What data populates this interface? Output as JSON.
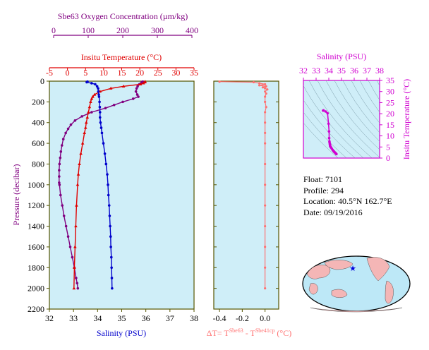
{
  "colors": {
    "oxygen": "#800080",
    "temperature": "#e00000",
    "salinity": "#0000cc",
    "delta_t": "#ff7070",
    "salinity_ts": "#d000d0",
    "panel_bg": "#cfeef8",
    "frame": "#555500"
  },
  "info": {
    "float": "Float:  7101",
    "profile": "Profile:  294",
    "location": "Location:  40.5°N  162.7°E",
    "date": "Date:  09/19/2016"
  },
  "chart_data": [
    {
      "type": "line",
      "panel": "profile",
      "ylabel": "Pressure (decibar)",
      "ylim": [
        2200,
        0
      ],
      "yticks": [
        0,
        200,
        400,
        600,
        800,
        1000,
        1200,
        1400,
        1600,
        1800,
        2000,
        2200
      ],
      "axes": {
        "oxygen": {
          "label": "Sbe63 Oxygen Concentration (µm/kg)",
          "lim": [
            0,
            400
          ],
          "ticks": [
            0,
            100,
            200,
            300,
            400
          ]
        },
        "temperature": {
          "label": "Insitu Temperature (°C)",
          "lim": [
            -5,
            35
          ],
          "ticks": [
            -5,
            0,
            5,
            10,
            15,
            20,
            25,
            30,
            35
          ]
        },
        "salinity": {
          "label": "Salinity (PSU)",
          "lim": [
            32,
            38
          ],
          "ticks": [
            32,
            33,
            34,
            35,
            36,
            37,
            38
          ]
        }
      },
      "series": [
        {
          "key": "oxygen",
          "pressure": [
            5,
            10,
            20,
            30,
            50,
            70,
            100,
            130,
            150,
            170,
            200,
            230,
            260,
            300,
            340,
            380,
            420,
            460,
            500,
            560,
            620,
            680,
            740,
            800,
            860,
            920,
            980,
            1000,
            1100,
            1200,
            1300,
            1400,
            1500,
            1600,
            1700,
            1800,
            1900,
            1950,
            2000
          ],
          "values": [
            258,
            255,
            253,
            248,
            243,
            240,
            238,
            242,
            245,
            230,
            200,
            175,
            150,
            110,
            82,
            62,
            50,
            42,
            35,
            28,
            24,
            21,
            19,
            17,
            16,
            16,
            16,
            17,
            20,
            25,
            30,
            36,
            42,
            48,
            54,
            60,
            65,
            68,
            70
          ]
        },
        {
          "key": "temperature",
          "pressure": [
            5,
            10,
            20,
            30,
            50,
            70,
            100,
            130,
            150,
            170,
            200,
            250,
            300,
            350,
            400,
            450,
            500,
            600,
            700,
            800,
            900,
            1000,
            1200,
            1400,
            1600,
            1800,
            2000
          ],
          "values": [
            21.5,
            21.4,
            21.0,
            20.2,
            15.5,
            12.0,
            9.0,
            7.5,
            7.0,
            6.7,
            6.4,
            6.1,
            5.8,
            5.5,
            5.2,
            5.0,
            4.7,
            4.2,
            3.7,
            3.3,
            3.0,
            2.8,
            2.5,
            2.3,
            2.1,
            1.9,
            1.8
          ]
        },
        {
          "key": "salinity",
          "pressure": [
            5,
            10,
            20,
            30,
            50,
            70,
            100,
            130,
            150,
            200,
            250,
            300,
            350,
            400,
            450,
            500,
            600,
            700,
            800,
            900,
            1000,
            1100,
            1200,
            1300,
            1400,
            1500,
            1600,
            1700,
            1800,
            1900,
            2000
          ],
          "values": [
            33.58,
            33.55,
            33.75,
            33.9,
            33.98,
            34.02,
            34.03,
            34.05,
            34.06,
            34.08,
            34.09,
            34.1,
            34.1,
            34.12,
            34.15,
            34.18,
            34.24,
            34.3,
            34.35,
            34.4,
            34.43,
            34.45,
            34.48,
            34.5,
            34.52,
            34.54,
            34.55,
            34.57,
            34.58,
            34.59,
            34.6
          ]
        }
      ]
    },
    {
      "type": "line",
      "panel": "delta_t",
      "xlabel": "ΔT= T^Sbe63 - T^Sbe41cp (°C)",
      "xlim": [
        -0.45,
        0.12
      ],
      "xticks": [
        -0.4,
        -0.2,
        0.0
      ],
      "ylim": [
        2200,
        0
      ],
      "pressure": [
        5,
        10,
        20,
        30,
        40,
        50,
        60,
        70,
        80,
        100,
        120,
        150,
        200,
        250,
        300,
        400,
        500,
        600,
        800,
        1000,
        1200,
        1400,
        1600,
        1800,
        2000
      ],
      "values": [
        -0.4,
        -0.1,
        -0.05,
        0.0,
        -0.05,
        0.01,
        -0.02,
        0.0,
        0.02,
        0.0,
        0.01,
        0.0,
        0.0,
        0.01,
        0.0,
        0.0,
        0.0,
        0.0,
        0.0,
        0.0,
        0.0,
        0.0,
        0.0,
        0.0,
        0.0
      ]
    },
    {
      "type": "scatter",
      "panel": "ts",
      "xlabel": "Salinity (PSU)",
      "ylabel": "Insitu Temperature (°C)",
      "xlim": [
        32,
        38
      ],
      "xticks": [
        32,
        33,
        34,
        35,
        36,
        37,
        38
      ],
      "ylim": [
        0,
        35
      ],
      "yticks": [
        0,
        5,
        10,
        15,
        20,
        25,
        30,
        35
      ],
      "salinity": [
        33.58,
        33.55,
        33.75,
        33.9,
        33.98,
        34.02,
        34.03,
        34.05,
        34.06,
        34.08,
        34.09,
        34.1,
        34.1,
        34.12,
        34.15,
        34.18,
        34.24,
        34.3,
        34.35,
        34.4,
        34.43,
        34.48,
        34.52,
        34.55,
        34.58,
        34.6
      ],
      "temperature": [
        21.5,
        21.4,
        21.0,
        20.2,
        15.5,
        12.0,
        9.0,
        7.5,
        7.0,
        6.4,
        6.1,
        5.8,
        5.5,
        5.2,
        5.0,
        4.7,
        4.2,
        3.7,
        3.3,
        3.0,
        2.8,
        2.5,
        2.3,
        2.1,
        1.9,
        1.8
      ]
    }
  ]
}
